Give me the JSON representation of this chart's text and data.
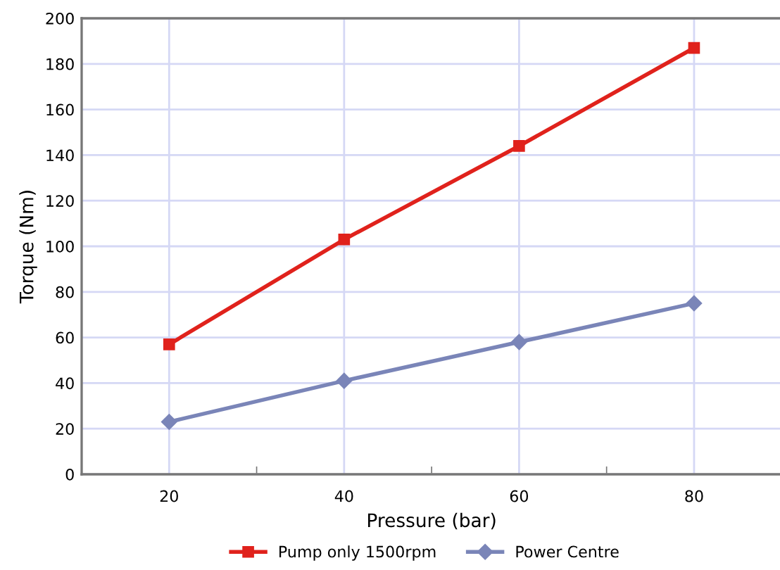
{
  "chart_data": {
    "type": "line",
    "xlabel": "Pressure (bar)",
    "ylabel": "Torque (Nm)",
    "categories": [
      "20",
      "40",
      "60",
      "80"
    ],
    "series": [
      {
        "name": "Pump only 1500rpm",
        "color": "#e0221c",
        "values": [
          57,
          103,
          144,
          187
        ],
        "marker": "square"
      },
      {
        "name": "Power Centre",
        "color": "#7a85b8",
        "values": [
          23,
          41,
          58,
          75
        ],
        "marker": "diamond"
      }
    ],
    "ylim": [
      0,
      200
    ],
    "yticks": [
      0,
      20,
      40,
      60,
      80,
      100,
      120,
      140,
      160,
      180,
      200
    ],
    "grid": true,
    "legend": "bottom",
    "line_style": "solid"
  }
}
